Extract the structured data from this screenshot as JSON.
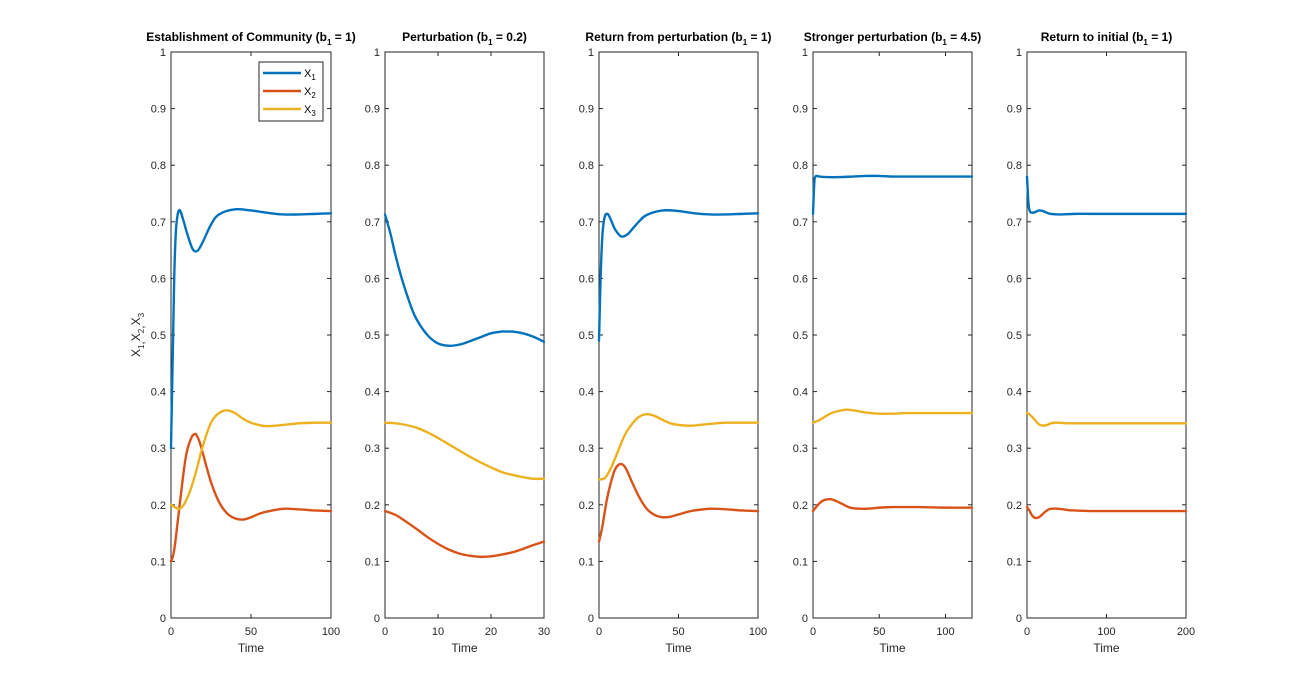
{
  "colors": {
    "x1": "#0072BD",
    "x2": "#D95319",
    "x3": "#EDB120"
  },
  "chart_data": [
    {
      "type": "line",
      "title": "Establishment of Community (b1 = 1)",
      "title_base": "Establishment of Community (b",
      "title_sub": "1",
      "title_tail": " = 1)",
      "xlabel": "Time",
      "ylabel": "X1,X2,X3",
      "xlim": [
        0,
        100
      ],
      "ylim": [
        0,
        1
      ],
      "xticks": [
        0,
        50,
        100
      ],
      "yticks": [
        0,
        0.1,
        0.2,
        0.3,
        0.4,
        0.5,
        0.6,
        0.7,
        0.8,
        0.9,
        1
      ],
      "legend": {
        "placement": "top-right",
        "entries": [
          "X1",
          "X2",
          "X3"
        ]
      },
      "series": [
        {
          "name": "X1",
          "x": [
            0,
            1,
            2,
            3,
            4,
            5,
            6,
            8,
            10,
            13,
            15,
            17,
            20,
            25,
            30,
            40,
            50,
            60,
            70,
            80,
            90,
            100
          ],
          "values": [
            0.3,
            0.45,
            0.6,
            0.68,
            0.71,
            0.72,
            0.718,
            0.7,
            0.68,
            0.655,
            0.648,
            0.65,
            0.665,
            0.695,
            0.713,
            0.722,
            0.72,
            0.716,
            0.713,
            0.713,
            0.714,
            0.715
          ]
        },
        {
          "name": "X2",
          "x": [
            0,
            2,
            5,
            8,
            10,
            13,
            15,
            16,
            18,
            20,
            25,
            30,
            35,
            40,
            45,
            50,
            55,
            60,
            70,
            80,
            90,
            100
          ],
          "values": [
            0.1,
            0.12,
            0.19,
            0.26,
            0.295,
            0.32,
            0.325,
            0.323,
            0.31,
            0.29,
            0.24,
            0.205,
            0.185,
            0.176,
            0.174,
            0.178,
            0.184,
            0.188,
            0.193,
            0.192,
            0.19,
            0.189
          ]
        },
        {
          "name": "X3",
          "x": [
            0,
            3,
            5,
            8,
            12,
            16,
            20,
            25,
            30,
            35,
            40,
            45,
            50,
            55,
            60,
            70,
            80,
            90,
            100
          ],
          "values": [
            0.2,
            0.195,
            0.193,
            0.2,
            0.225,
            0.262,
            0.305,
            0.345,
            0.362,
            0.367,
            0.362,
            0.352,
            0.345,
            0.341,
            0.339,
            0.341,
            0.344,
            0.345,
            0.345
          ]
        }
      ]
    },
    {
      "type": "line",
      "title": "Perturbation (b1 = 0.2)",
      "title_base": "Perturbation (b",
      "title_sub": "1",
      "title_tail": " = 0.2)",
      "xlabel": "Time",
      "xlim": [
        0,
        30
      ],
      "ylim": [
        0,
        1
      ],
      "xticks": [
        0,
        10,
        20,
        30
      ],
      "yticks": [
        0,
        0.1,
        0.2,
        0.3,
        0.4,
        0.5,
        0.6,
        0.7,
        0.8,
        0.9,
        1
      ],
      "series": [
        {
          "name": "X1",
          "x": [
            0,
            1,
            2,
            3,
            4,
            5,
            6,
            8,
            10,
            12,
            14,
            16,
            18,
            20,
            22,
            23,
            24,
            26,
            28,
            30
          ],
          "values": [
            0.713,
            0.68,
            0.64,
            0.605,
            0.575,
            0.548,
            0.527,
            0.5,
            0.485,
            0.481,
            0.483,
            0.489,
            0.496,
            0.503,
            0.506,
            0.506,
            0.506,
            0.503,
            0.497,
            0.488
          ]
        },
        {
          "name": "X2",
          "x": [
            0,
            2,
            4,
            6,
            8,
            10,
            12,
            14,
            16,
            18,
            20,
            22,
            24,
            26,
            28,
            30
          ],
          "values": [
            0.189,
            0.182,
            0.17,
            0.157,
            0.143,
            0.131,
            0.121,
            0.114,
            0.11,
            0.108,
            0.109,
            0.112,
            0.116,
            0.122,
            0.129,
            0.135
          ]
        },
        {
          "name": "X3",
          "x": [
            0,
            2,
            4,
            6,
            8,
            10,
            12,
            14,
            16,
            18,
            20,
            22,
            24,
            26,
            28,
            30
          ],
          "values": [
            0.345,
            0.344,
            0.341,
            0.336,
            0.328,
            0.318,
            0.307,
            0.296,
            0.285,
            0.275,
            0.266,
            0.258,
            0.253,
            0.249,
            0.246,
            0.246
          ]
        }
      ]
    },
    {
      "type": "line",
      "title": "Return from perturbation (b1 = 1)",
      "title_base": "Return from perturbation (b",
      "title_sub": "1",
      "title_tail": " = 1)",
      "xlabel": "Time",
      "xlim": [
        0,
        100
      ],
      "ylim": [
        0,
        1
      ],
      "xticks": [
        0,
        50,
        100
      ],
      "yticks": [
        0,
        0.1,
        0.2,
        0.3,
        0.4,
        0.5,
        0.6,
        0.7,
        0.8,
        0.9,
        1
      ],
      "series": [
        {
          "name": "X1",
          "x": [
            0,
            1,
            2,
            3,
            4,
            5,
            6,
            8,
            10,
            13,
            15,
            18,
            20,
            25,
            30,
            40,
            50,
            60,
            70,
            80,
            90,
            100
          ],
          "values": [
            0.49,
            0.6,
            0.67,
            0.7,
            0.712,
            0.714,
            0.712,
            0.7,
            0.687,
            0.676,
            0.674,
            0.678,
            0.684,
            0.7,
            0.712,
            0.72,
            0.719,
            0.715,
            0.713,
            0.713,
            0.714,
            0.715
          ]
        },
        {
          "name": "X2",
          "x": [
            0,
            2,
            5,
            8,
            10,
            12,
            14,
            16,
            18,
            20,
            25,
            30,
            35,
            40,
            45,
            50,
            55,
            60,
            70,
            80,
            90,
            100
          ],
          "values": [
            0.135,
            0.16,
            0.21,
            0.245,
            0.262,
            0.27,
            0.272,
            0.268,
            0.258,
            0.245,
            0.215,
            0.193,
            0.182,
            0.178,
            0.179,
            0.183,
            0.187,
            0.19,
            0.193,
            0.192,
            0.19,
            0.189
          ]
        },
        {
          "name": "X3",
          "x": [
            0,
            3,
            5,
            8,
            12,
            16,
            20,
            25,
            30,
            35,
            40,
            45,
            50,
            55,
            60,
            70,
            80,
            90,
            100
          ],
          "values": [
            0.245,
            0.246,
            0.252,
            0.268,
            0.295,
            0.322,
            0.34,
            0.355,
            0.36,
            0.357,
            0.35,
            0.344,
            0.341,
            0.34,
            0.34,
            0.343,
            0.345,
            0.345,
            0.345
          ]
        }
      ]
    },
    {
      "type": "line",
      "title": "Stronger perturbation (b1 = 4.5)",
      "title_base": "Stronger perturbation (b",
      "title_sub": "1",
      "title_tail": " = 4.5)",
      "xlabel": "Time",
      "xlim": [
        0,
        120
      ],
      "ylim": [
        0,
        1
      ],
      "xticks": [
        0,
        50,
        100
      ],
      "yticks": [
        0,
        0.1,
        0.2,
        0.3,
        0.4,
        0.5,
        0.6,
        0.7,
        0.8,
        0.9,
        1
      ],
      "series": [
        {
          "name": "X1",
          "x": [
            0,
            1,
            2,
            3,
            5,
            10,
            20,
            30,
            40,
            50,
            60,
            80,
            100,
            120
          ],
          "values": [
            0.714,
            0.77,
            0.78,
            0.781,
            0.78,
            0.779,
            0.779,
            0.78,
            0.781,
            0.781,
            0.78,
            0.78,
            0.78,
            0.78
          ]
        },
        {
          "name": "X2",
          "x": [
            0,
            2,
            5,
            8,
            12,
            15,
            20,
            25,
            30,
            40,
            50,
            60,
            70,
            80,
            100,
            120
          ],
          "values": [
            0.189,
            0.195,
            0.203,
            0.208,
            0.21,
            0.209,
            0.204,
            0.198,
            0.194,
            0.193,
            0.195,
            0.196,
            0.196,
            0.196,
            0.195,
            0.195
          ]
        },
        {
          "name": "X3",
          "x": [
            0,
            5,
            10,
            15,
            20,
            25,
            30,
            35,
            40,
            50,
            60,
            70,
            80,
            100,
            120
          ],
          "values": [
            0.345,
            0.35,
            0.357,
            0.363,
            0.366,
            0.368,
            0.367,
            0.365,
            0.363,
            0.361,
            0.361,
            0.362,
            0.362,
            0.362,
            0.362
          ]
        }
      ]
    },
    {
      "type": "line",
      "title": "Return to initial (b1 = 1)",
      "title_base": "Return to initial (b",
      "title_sub": "1",
      "title_tail": " = 1)",
      "xlabel": "Time",
      "xlim": [
        0,
        200
      ],
      "ylim": [
        0,
        1
      ],
      "xticks": [
        0,
        100,
        200
      ],
      "yticks": [
        0,
        0.1,
        0.2,
        0.3,
        0.4,
        0.5,
        0.6,
        0.7,
        0.8,
        0.9,
        1
      ],
      "series": [
        {
          "name": "X1",
          "x": [
            0,
            2,
            4,
            6,
            10,
            15,
            20,
            25,
            30,
            40,
            60,
            80,
            100,
            150,
            200
          ],
          "values": [
            0.78,
            0.73,
            0.718,
            0.716,
            0.717,
            0.72,
            0.719,
            0.716,
            0.714,
            0.713,
            0.714,
            0.714,
            0.714,
            0.714,
            0.714
          ]
        },
        {
          "name": "X2",
          "x": [
            0,
            3,
            6,
            10,
            15,
            20,
            25,
            30,
            40,
            50,
            60,
            80,
            100,
            150,
            200
          ],
          "values": [
            0.196,
            0.19,
            0.182,
            0.177,
            0.178,
            0.184,
            0.19,
            0.193,
            0.193,
            0.191,
            0.19,
            0.189,
            0.189,
            0.189,
            0.189
          ]
        },
        {
          "name": "X3",
          "x": [
            0,
            3,
            6,
            10,
            15,
            20,
            25,
            30,
            35,
            40,
            50,
            60,
            80,
            100,
            150,
            200
          ],
          "values": [
            0.362,
            0.36,
            0.356,
            0.35,
            0.342,
            0.34,
            0.341,
            0.344,
            0.345,
            0.345,
            0.344,
            0.344,
            0.344,
            0.344,
            0.344,
            0.344
          ]
        }
      ]
    }
  ]
}
